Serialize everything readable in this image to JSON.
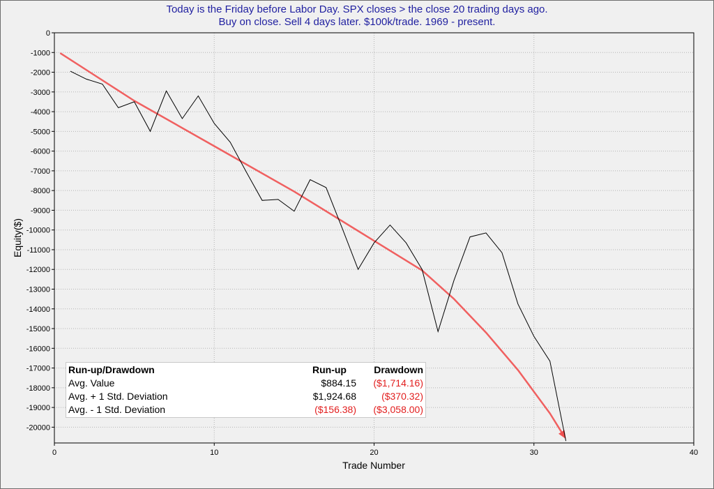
{
  "chart_data": {
    "type": "line",
    "title_lines": [
      "Today is the Friday before Labor Day. SPX closes > the close 20 trading days ago.",
      "Buy on close. Sell 4 days later. $100k/trade. 1969 - present."
    ],
    "xlabel": "Trade Number",
    "ylabel": "Equity($)",
    "xlim": [
      0,
      40
    ],
    "ylim": [
      -20800,
      0
    ],
    "x_ticks": [
      "0",
      "10",
      "20",
      "30",
      "40"
    ],
    "y_ticks": [
      "0",
      "-1000",
      "-2000",
      "-3000",
      "-4000",
      "-5000",
      "-6000",
      "-7000",
      "-8000",
      "-9000",
      "-10000",
      "-11000",
      "-12000",
      "-13000",
      "-14000",
      "-15000",
      "-16000",
      "-17000",
      "-18000",
      "-19000",
      "-20000"
    ],
    "grid": true,
    "series": [
      {
        "x": [
          1,
          2,
          3,
          4,
          5,
          6,
          7,
          8,
          9,
          10,
          11,
          12,
          13,
          14,
          15,
          16,
          17,
          18,
          19,
          20,
          21,
          22,
          23,
          24,
          25,
          26,
          27,
          28,
          29,
          30,
          31,
          32
        ],
        "values": [
          -1950,
          -2350,
          -2600,
          -3800,
          -3500,
          -5000,
          -2950,
          -4350,
          -3200,
          -4600,
          -5550,
          -7050,
          -8500,
          -8450,
          -9050,
          -7450,
          -7850,
          -9900,
          -12000,
          -10650,
          -9750,
          -10650,
          -12000,
          -15150,
          -12550,
          -10350,
          -10150,
          -11150,
          -13750,
          -15400,
          -16650,
          -20700
        ],
        "color": "#000000"
      }
    ],
    "trend_arrow": {
      "x": [
        0.4,
        5,
        10,
        15,
        20,
        23,
        25,
        27,
        29,
        31,
        32
      ],
      "values": [
        -1050,
        -3450,
        -5750,
        -8050,
        -10550,
        -12050,
        -13500,
        -15200,
        -17100,
        -19300,
        -20600
      ],
      "color": "#f05050"
    }
  },
  "stats_table": {
    "headers": [
      "Run-up/Drawdown",
      "Run-up",
      "Drawdown"
    ],
    "rows": [
      {
        "label": "Avg. Value",
        "runup": "$884.15",
        "drawdown": "($1,714.16)"
      },
      {
        "label": "Avg. + 1 Std. Deviation",
        "runup": "$1,924.68",
        "drawdown": "($370.32)"
      },
      {
        "label": "Avg. - 1 Std. Deviation",
        "runup": "($156.38)",
        "drawdown": "($3,058.00)"
      }
    ],
    "negative_color": "#e21e1e"
  }
}
